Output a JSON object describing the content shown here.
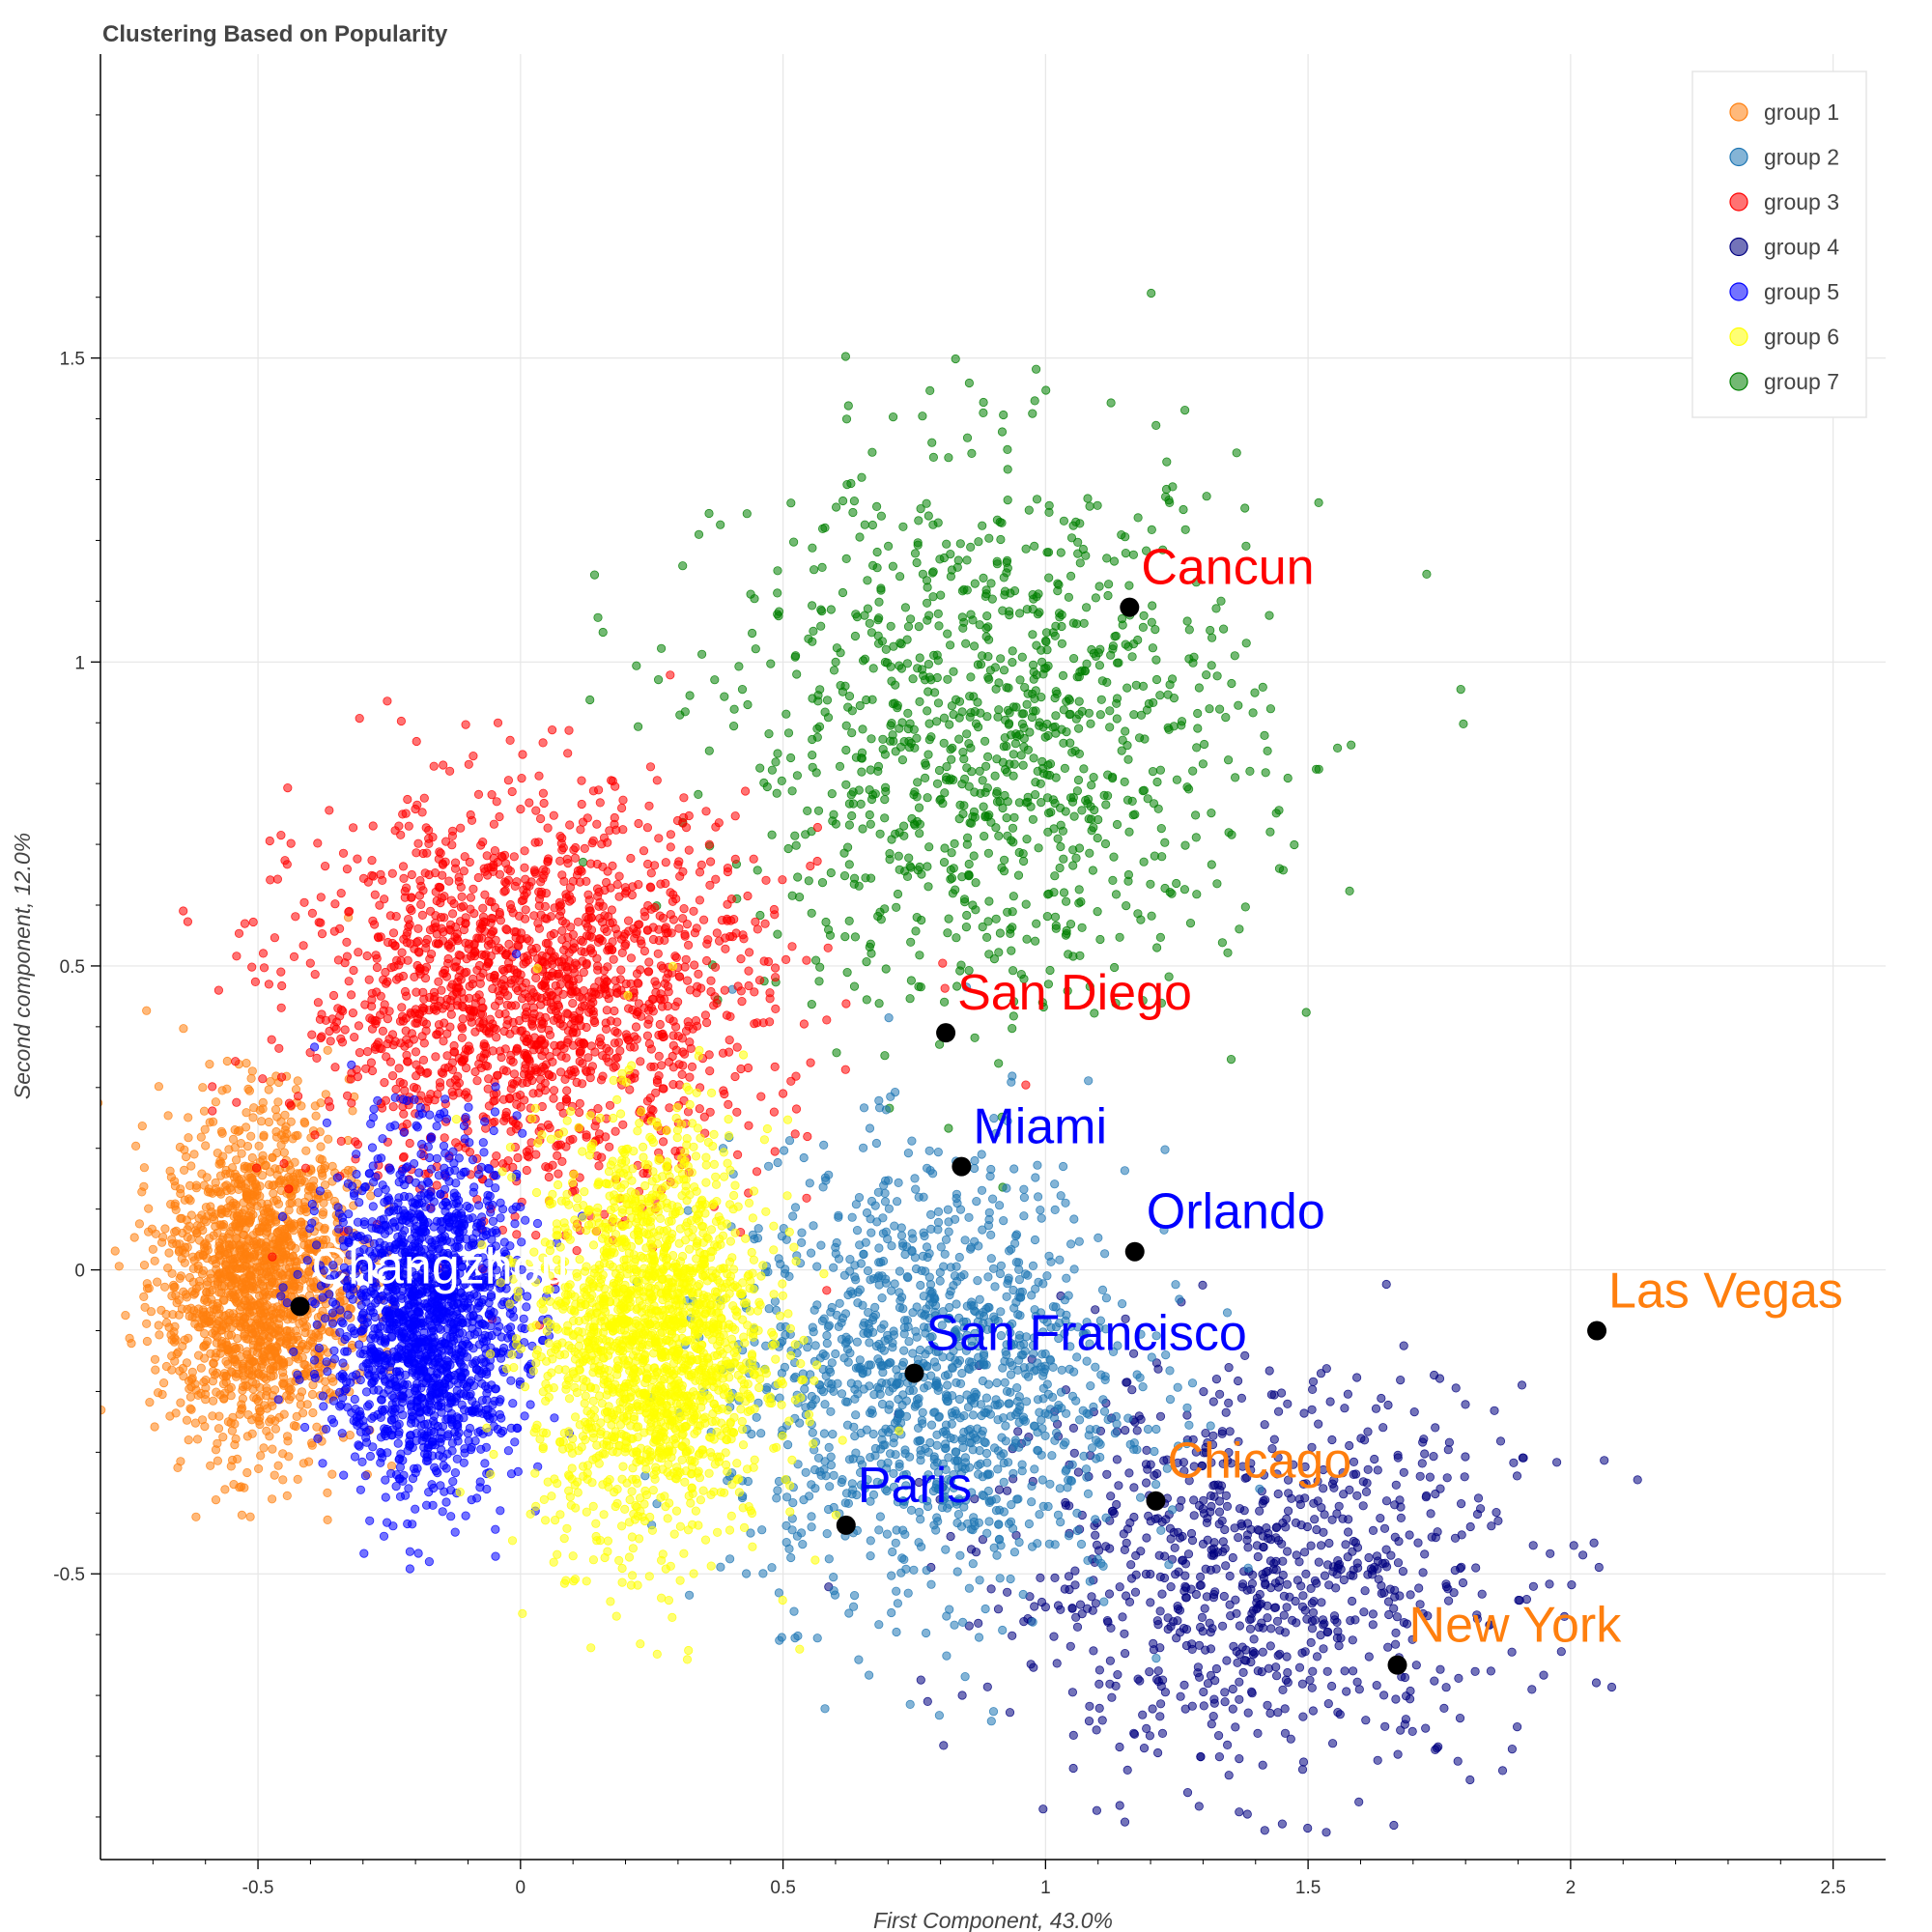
{
  "chart_data": {
    "type": "scatter",
    "title": "Clustering Based on Popularity",
    "xlabel": "First Component, 43.0%",
    "ylabel": "Second component, 12.0%",
    "xlim": [
      -0.8,
      2.6
    ],
    "ylim": [
      -0.97,
      2.0
    ],
    "x_ticks": [
      -0.5,
      0,
      0.5,
      1,
      1.5,
      2,
      2.5
    ],
    "x_tick_labels": [
      "-0.5",
      "0",
      "0.5",
      "1",
      "1.5",
      "2",
      "2.5"
    ],
    "y_ticks": [
      -0.5,
      0,
      0.5,
      1,
      1.5
    ],
    "y_tick_labels": [
      "-0.5",
      "0",
      "0.5",
      "1",
      "1.5"
    ],
    "grid": true,
    "legend_position": "top-right",
    "series": [
      {
        "name": "group 1",
        "color": "#ff7f0e",
        "cx": -0.5,
        "cy": -0.02,
        "sx": 0.09,
        "sy": 0.14,
        "n": 1600
      },
      {
        "name": "group 2",
        "color": "#1f77b4",
        "cx": 0.78,
        "cy": -0.18,
        "sx": 0.19,
        "sy": 0.18,
        "n": 1300
      },
      {
        "name": "group 3",
        "color": "#ff0000",
        "cx": 0.02,
        "cy": 0.45,
        "sx": 0.22,
        "sy": 0.16,
        "n": 1800
      },
      {
        "name": "group 4",
        "color": "#000080",
        "cx": 1.4,
        "cy": -0.5,
        "sx": 0.25,
        "sy": 0.16,
        "n": 900
      },
      {
        "name": "group 5",
        "color": "#0000ff",
        "cx": -0.18,
        "cy": -0.08,
        "sx": 0.09,
        "sy": 0.14,
        "n": 1700
      },
      {
        "name": "group 6",
        "color": "#ffff00",
        "cx": 0.25,
        "cy": -0.11,
        "sx": 0.11,
        "sy": 0.17,
        "n": 1900
      },
      {
        "name": "group 7",
        "color": "#008000",
        "cx": 0.9,
        "cy": 0.88,
        "sx": 0.25,
        "sy": 0.22,
        "n": 1100
      }
    ],
    "highlighted_points": [
      {
        "label": "Cancun",
        "x": 1.16,
        "y": 1.09,
        "label_color": "#ff0000"
      },
      {
        "label": "San Diego",
        "x": 0.81,
        "y": 0.39,
        "label_color": "#ff0000"
      },
      {
        "label": "Miami",
        "x": 0.84,
        "y": 0.17,
        "label_color": "#0000ff"
      },
      {
        "label": "Orlando",
        "x": 1.17,
        "y": 0.03,
        "label_color": "#0000ff"
      },
      {
        "label": "Changzhou",
        "x": -0.42,
        "y": -0.06,
        "label_color": "#ffffff"
      },
      {
        "label": "Las Vegas",
        "x": 2.05,
        "y": -0.1,
        "label_color": "#ff7f0e"
      },
      {
        "label": "San Francisco",
        "x": 0.75,
        "y": -0.17,
        "label_color": "#0000ff"
      },
      {
        "label": "Chicago",
        "x": 1.21,
        "y": -0.38,
        "label_color": "#ff7f0e"
      },
      {
        "label": "Paris",
        "x": 0.62,
        "y": -0.42,
        "label_color": "#0000ff"
      },
      {
        "label": "New York",
        "x": 1.67,
        "y": -0.65,
        "label_color": "#ff7f0e"
      }
    ]
  }
}
